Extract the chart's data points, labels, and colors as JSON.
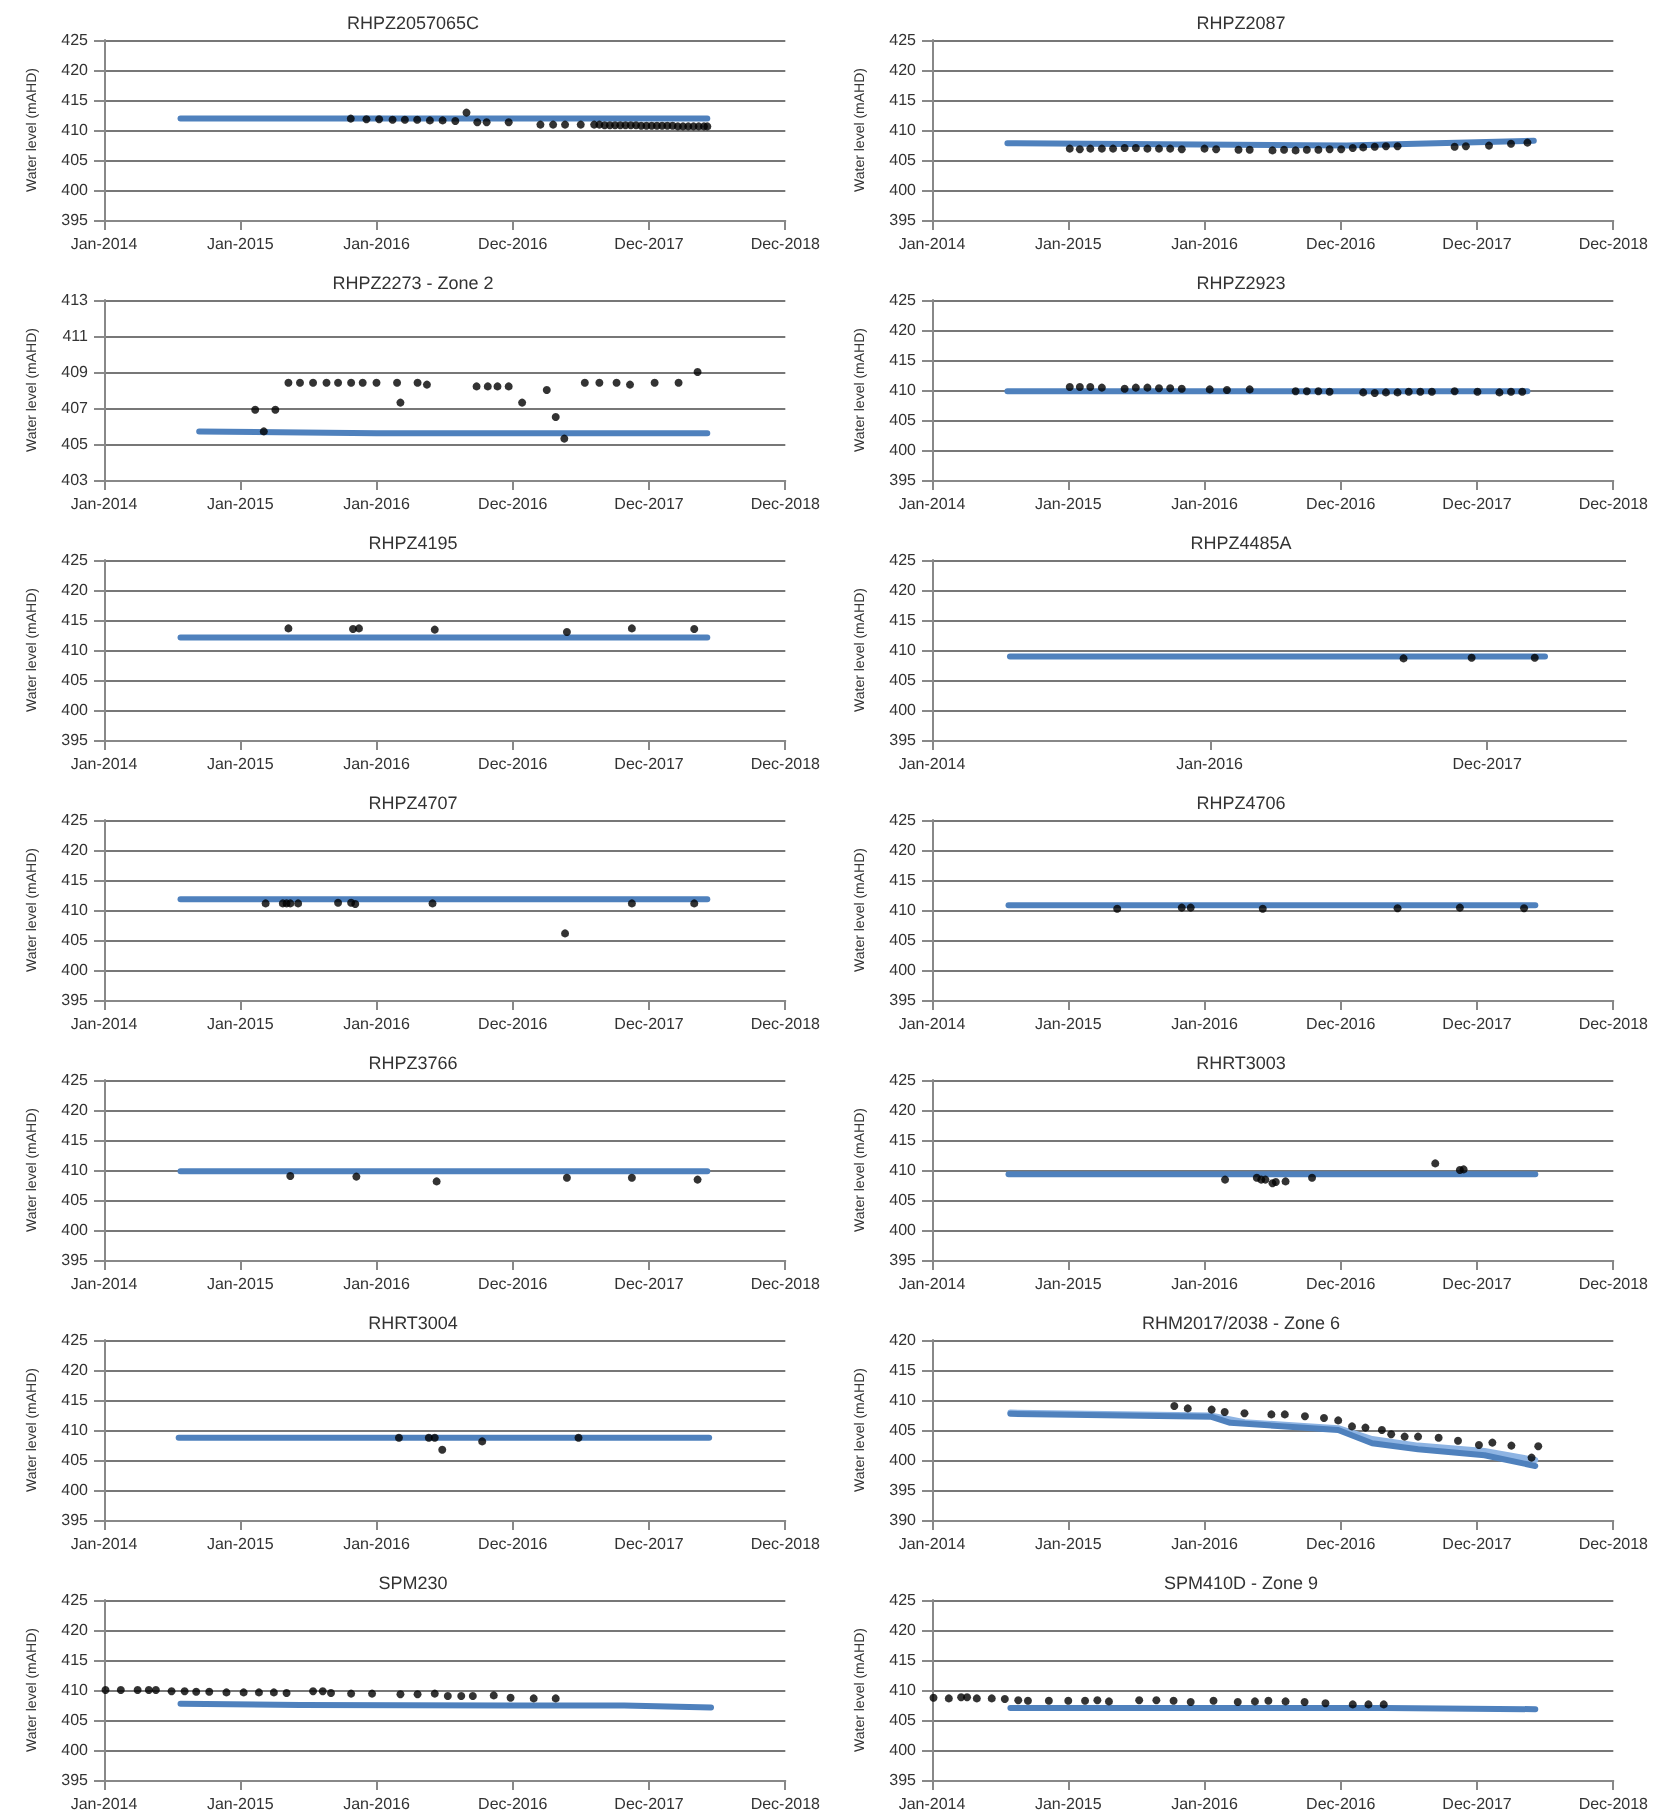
{
  "chart_data": [
    {
      "type": "scatter",
      "title": "RHPZ2057065C",
      "ylabel": "Water level (mAHD)",
      "grid": "y",
      "xlim": [
        "2014-01-01",
        "2018-12-31"
      ],
      "xticks": [
        {
          "value": "2014-01-01",
          "label": "Jan-2014"
        },
        {
          "value": "2015-01-01",
          "label": "Jan-2015"
        },
        {
          "value": "2016-01-01",
          "label": "Jan-2016"
        },
        {
          "value": "2016-12-31",
          "label": "Dec-2016"
        },
        {
          "value": "2017-12-31",
          "label": "Dec-2017"
        },
        {
          "value": "2018-12-31",
          "label": "Dec-2018"
        }
      ],
      "ylim": [
        395,
        425
      ],
      "yticks": [
        395,
        400,
        405,
        410,
        415,
        420,
        425
      ],
      "series": [
        {
          "type": "line",
          "color": "#4f81bd",
          "marker": "none",
          "x": [
            "2014-07-25",
            "2018-06-05"
          ],
          "values": [
            411.9,
            411.9
          ]
        },
        {
          "color": "#000000",
          "marker": "circle",
          "x": [
            "2015-10-24",
            "2015-12-05",
            "2016-01-08",
            "2016-02-13",
            "2016-03-17",
            "2016-04-19",
            "2016-05-23",
            "2016-06-26",
            "2016-07-30",
            "2016-08-29",
            "2016-09-27",
            "2016-10-22",
            "2016-12-20",
            "2017-03-15",
            "2017-04-18",
            "2017-05-20",
            "2017-07-01",
            "2017-08-06",
            "2017-08-20",
            "2017-09-03",
            "2017-09-17",
            "2017-10-01",
            "2017-10-15",
            "2017-10-29",
            "2017-11-12",
            "2017-11-26",
            "2017-12-10",
            "2017-12-24",
            "2018-01-07",
            "2018-01-21",
            "2018-02-04",
            "2018-02-18",
            "2018-03-04",
            "2018-03-18",
            "2018-04-01",
            "2018-04-15",
            "2018-04-29",
            "2018-05-13",
            "2018-05-27",
            "2018-06-05"
          ],
          "values": [
            411.9,
            411.8,
            411.8,
            411.7,
            411.7,
            411.7,
            411.6,
            411.6,
            411.5,
            412.9,
            411.3,
            411.3,
            411.3,
            410.9,
            410.9,
            410.9,
            410.9,
            410.9,
            410.9,
            410.8,
            410.8,
            410.8,
            410.8,
            410.8,
            410.8,
            410.8,
            410.7,
            410.7,
            410.7,
            410.7,
            410.7,
            410.7,
            410.7,
            410.6,
            410.6,
            410.6,
            410.6,
            410.6,
            410.6,
            410.6
          ]
        }
      ]
    },
    {
      "type": "scatter",
      "title": "RHPZ2087",
      "ylabel": "Water level (mAHD)",
      "grid": "y",
      "xlim": [
        "2014-01-01",
        "2018-12-31"
      ],
      "xticks": [
        {
          "value": "2014-01-01",
          "label": "Jan-2014"
        },
        {
          "value": "2015-01-01",
          "label": "Jan-2015"
        },
        {
          "value": "2016-01-01",
          "label": "Jan-2016"
        },
        {
          "value": "2016-12-31",
          "label": "Dec-2016"
        },
        {
          "value": "2017-12-31",
          "label": "Dec-2017"
        },
        {
          "value": "2018-12-31",
          "label": "Dec-2018"
        }
      ],
      "ylim": [
        395,
        425
      ],
      "yticks": [
        395,
        400,
        405,
        410,
        415,
        420,
        425
      ],
      "series": [
        {
          "type": "line",
          "color": "#4f81bd",
          "marker": "none",
          "x": [
            "2014-07-22",
            "2017-01-15",
            "2018-06-01"
          ],
          "values": [
            407.8,
            407.4,
            408.2
          ]
        },
        {
          "color": "#000000",
          "marker": "circle",
          "x": [
            "2015-01-05",
            "2015-02-01",
            "2015-03-01",
            "2015-04-01",
            "2015-05-01",
            "2015-06-01",
            "2015-07-01",
            "2015-08-01",
            "2015-09-01",
            "2015-10-01",
            "2015-11-01",
            "2016-01-01",
            "2016-02-01",
            "2016-04-01",
            "2016-05-01",
            "2016-07-01",
            "2016-08-01",
            "2016-09-01",
            "2016-10-01",
            "2016-11-01",
            "2016-12-01",
            "2017-01-01",
            "2017-02-01",
            "2017-03-01",
            "2017-04-01",
            "2017-05-01",
            "2017-06-01",
            "2017-11-01",
            "2017-12-01",
            "2018-02-01",
            "2018-04-01",
            "2018-05-15"
          ],
          "values": [
            406.9,
            406.8,
            406.9,
            406.9,
            406.9,
            407.0,
            407.0,
            406.9,
            406.9,
            406.9,
            406.8,
            406.9,
            406.8,
            406.7,
            406.7,
            406.6,
            406.7,
            406.6,
            406.7,
            406.7,
            406.8,
            406.8,
            407.0,
            407.1,
            407.2,
            407.3,
            407.3,
            407.2,
            407.3,
            407.4,
            407.7,
            407.9
          ]
        }
      ]
    },
    {
      "type": "scatter",
      "title": "RHPZ2273 - Zone 2",
      "ylabel": "Water level (mAHD)",
      "grid": "y",
      "xlim": [
        "2014-01-01",
        "2018-12-31"
      ],
      "xticks": [
        {
          "value": "2014-01-01",
          "label": "Jan-2014"
        },
        {
          "value": "2015-01-01",
          "label": "Jan-2015"
        },
        {
          "value": "2016-01-01",
          "label": "Jan-2016"
        },
        {
          "value": "2016-12-31",
          "label": "Dec-2016"
        },
        {
          "value": "2017-12-31",
          "label": "Dec-2017"
        },
        {
          "value": "2018-12-31",
          "label": "Dec-2018"
        }
      ],
      "ylim": [
        403,
        413
      ],
      "yticks": [
        403,
        405,
        407,
        409,
        411,
        413
      ],
      "series": [
        {
          "type": "line",
          "color": "#4f81bd",
          "marker": "none",
          "x": [
            "2014-09-13",
            "2016-01-01",
            "2018-06-05"
          ],
          "values": [
            405.7,
            405.6,
            405.6
          ]
        },
        {
          "color": "#000000",
          "marker": "circle",
          "x": [
            "2015-02-10",
            "2015-03-05",
            "2015-04-05",
            "2015-05-10",
            "2015-06-10",
            "2015-07-15",
            "2015-08-20",
            "2015-09-20",
            "2015-10-25",
            "2015-11-25",
            "2016-01-01",
            "2016-02-25",
            "2016-03-05",
            "2016-04-20",
            "2016-05-15",
            "2016-09-25",
            "2016-10-25",
            "2016-11-20",
            "2016-12-20",
            "2017-01-25",
            "2017-04-01",
            "2017-04-25",
            "2017-05-18",
            "2017-07-12",
            "2017-08-20",
            "2017-10-05",
            "2017-11-10",
            "2018-01-15",
            "2018-03-20",
            "2018-05-10"
          ],
          "values": [
            406.9,
            405.7,
            406.9,
            408.4,
            408.4,
            408.4,
            408.4,
            408.4,
            408.4,
            408.4,
            408.4,
            408.4,
            407.3,
            408.4,
            408.3,
            408.2,
            408.2,
            408.2,
            408.2,
            407.3,
            408.0,
            406.5,
            405.3,
            408.4,
            408.4,
            408.4,
            408.3,
            408.4,
            408.4,
            409.0
          ]
        }
      ]
    },
    {
      "type": "scatter",
      "title": "RHPZ2923",
      "ylabel": "Water level (mAHD)",
      "grid": "y",
      "xlim": [
        "2014-01-01",
        "2018-12-31"
      ],
      "xticks": [
        {
          "value": "2014-01-01",
          "label": "Jan-2014"
        },
        {
          "value": "2015-01-01",
          "label": "Jan-2015"
        },
        {
          "value": "2016-01-01",
          "label": "Jan-2016"
        },
        {
          "value": "2016-12-31",
          "label": "Dec-2016"
        },
        {
          "value": "2017-12-31",
          "label": "Dec-2017"
        },
        {
          "value": "2018-12-31",
          "label": "Dec-2018"
        }
      ],
      "ylim": [
        395,
        425
      ],
      "yticks": [
        395,
        400,
        405,
        410,
        415,
        420,
        425
      ],
      "series": [
        {
          "type": "line",
          "color": "#4f81bd",
          "marker": "none",
          "x": [
            "2014-07-22",
            "2018-05-15"
          ],
          "values": [
            409.8,
            409.8
          ]
        },
        {
          "color": "#000000",
          "marker": "circle",
          "x": [
            "2015-01-05",
            "2015-02-01",
            "2015-03-01",
            "2015-04-01",
            "2015-06-01",
            "2015-07-01",
            "2015-08-01",
            "2015-09-01",
            "2015-10-01",
            "2015-11-01",
            "2016-01-15",
            "2016-03-01",
            "2016-05-01",
            "2016-09-01",
            "2016-10-01",
            "2016-11-01",
            "2016-12-01",
            "2017-03-01",
            "2017-04-01",
            "2017-05-01",
            "2017-06-01",
            "2017-07-01",
            "2017-08-01",
            "2017-09-01",
            "2017-11-01",
            "2018-01-01",
            "2018-03-01",
            "2018-04-01",
            "2018-05-01"
          ],
          "values": [
            410.5,
            410.5,
            410.5,
            410.4,
            410.2,
            410.4,
            410.4,
            410.3,
            410.3,
            410.2,
            410.1,
            410.0,
            410.1,
            409.8,
            409.8,
            409.8,
            409.7,
            409.6,
            409.5,
            409.6,
            409.6,
            409.7,
            409.7,
            409.7,
            409.8,
            409.7,
            409.6,
            409.7,
            409.7
          ]
        }
      ]
    },
    {
      "type": "scatter",
      "title": "RHPZ4195",
      "ylabel": "Water level (mAHD)",
      "grid": "y",
      "xlim": [
        "2014-01-01",
        "2018-12-31"
      ],
      "xticks": [
        {
          "value": "2014-01-01",
          "label": "Jan-2014"
        },
        {
          "value": "2015-01-01",
          "label": "Jan-2015"
        },
        {
          "value": "2016-01-01",
          "label": "Jan-2016"
        },
        {
          "value": "2016-12-31",
          "label": "Dec-2016"
        },
        {
          "value": "2017-12-31",
          "label": "Dec-2017"
        },
        {
          "value": "2018-12-31",
          "label": "Dec-2018"
        }
      ],
      "ylim": [
        395,
        425
      ],
      "yticks": [
        395,
        400,
        405,
        410,
        415,
        420,
        425
      ],
      "series": [
        {
          "type": "line",
          "color": "#4f81bd",
          "marker": "none",
          "x": [
            "2014-07-25",
            "2018-06-05"
          ],
          "values": [
            412.1,
            412.1
          ]
        },
        {
          "color": "#000000",
          "marker": "circle",
          "x": [
            "2015-05-10",
            "2015-10-30",
            "2015-11-15",
            "2016-06-05",
            "2017-05-25",
            "2017-11-15",
            "2018-05-01"
          ],
          "values": [
            413.6,
            413.5,
            413.6,
            413.4,
            413.0,
            413.6,
            413.5
          ]
        }
      ]
    },
    {
      "type": "scatter",
      "title": "RHPZ4485A",
      "ylabel": "Water level (mAHD)",
      "grid": "y",
      "xlim": [
        "2014-01-01",
        "2018-12-31"
      ],
      "xticks": [
        {
          "value": "2014-01-01",
          "label": "Jan-2014"
        },
        {
          "value": "2016-01-01",
          "label": "Jan-2016"
        },
        {
          "value": "2017-12-31",
          "label": "Dec-2017"
        }
      ],
      "ylim": [
        395,
        425
      ],
      "yticks": [
        395,
        400,
        405,
        410,
        415,
        420,
        425
      ],
      "series": [
        {
          "type": "line",
          "color": "#4f81bd",
          "marker": "none",
          "x": [
            "2014-07-25",
            "2018-06-01"
          ],
          "values": [
            408.9,
            408.9
          ]
        },
        {
          "color": "#000000",
          "marker": "circle",
          "x": [
            "2017-05-25",
            "2017-11-20",
            "2018-05-05"
          ],
          "values": [
            408.6,
            408.7,
            408.7
          ]
        }
      ]
    },
    {
      "type": "scatter",
      "title": "RHPZ4707",
      "ylabel": "Water level (mAHD)",
      "grid": "y",
      "xlim": [
        "2014-01-01",
        "2018-12-31"
      ],
      "xticks": [
        {
          "value": "2014-01-01",
          "label": "Jan-2014"
        },
        {
          "value": "2015-01-01",
          "label": "Jan-2015"
        },
        {
          "value": "2016-01-01",
          "label": "Jan-2016"
        },
        {
          "value": "2016-12-31",
          "label": "Dec-2016"
        },
        {
          "value": "2017-12-31",
          "label": "Dec-2017"
        },
        {
          "value": "2018-12-31",
          "label": "Dec-2018"
        }
      ],
      "ylim": [
        395,
        425
      ],
      "yticks": [
        395,
        400,
        405,
        410,
        415,
        420,
        425
      ],
      "series": [
        {
          "type": "line",
          "color": "#4f81bd",
          "marker": "none",
          "x": [
            "2014-07-25",
            "2018-06-05"
          ],
          "values": [
            411.8,
            411.8
          ]
        },
        {
          "color": "#000000",
          "marker": "circle",
          "x": [
            "2015-03-10",
            "2015-04-25",
            "2015-05-05",
            "2015-05-15",
            "2015-06-05",
            "2015-09-20",
            "2015-10-25",
            "2015-11-05",
            "2016-05-30",
            "2017-05-20",
            "2017-11-15",
            "2018-05-01"
          ],
          "values": [
            411.1,
            411.1,
            411.1,
            411.1,
            411.1,
            411.2,
            411.2,
            411.0,
            411.1,
            406.1,
            411.1,
            411.1
          ]
        }
      ]
    },
    {
      "type": "scatter",
      "title": "RHPZ4706",
      "ylabel": "Water level (mAHD)",
      "grid": "y",
      "xlim": [
        "2014-01-01",
        "2018-12-31"
      ],
      "xticks": [
        {
          "value": "2014-01-01",
          "label": "Jan-2014"
        },
        {
          "value": "2015-01-01",
          "label": "Jan-2015"
        },
        {
          "value": "2016-01-01",
          "label": "Jan-2016"
        },
        {
          "value": "2016-12-31",
          "label": "Dec-2016"
        },
        {
          "value": "2017-12-31",
          "label": "Dec-2017"
        },
        {
          "value": "2018-12-31",
          "label": "Dec-2018"
        }
      ],
      "ylim": [
        395,
        425
      ],
      "yticks": [
        395,
        400,
        405,
        410,
        415,
        420,
        425
      ],
      "series": [
        {
          "type": "line",
          "color": "#4f81bd",
          "marker": "none",
          "x": [
            "2014-07-25",
            "2018-06-05"
          ],
          "values": [
            410.8,
            410.8
          ]
        },
        {
          "color": "#000000",
          "marker": "circle",
          "x": [
            "2015-05-12",
            "2015-11-01",
            "2015-11-25",
            "2016-06-05",
            "2017-06-01",
            "2017-11-15",
            "2018-05-06"
          ],
          "values": [
            410.2,
            410.4,
            410.4,
            410.2,
            410.3,
            410.4,
            410.3
          ]
        }
      ]
    },
    {
      "type": "scatter",
      "title": "RHPZ3766",
      "ylabel": "Water level (mAHD)",
      "grid": "y",
      "xlim": [
        "2014-01-01",
        "2018-12-31"
      ],
      "xticks": [
        {
          "value": "2014-01-01",
          "label": "Jan-2014"
        },
        {
          "value": "2015-01-01",
          "label": "Jan-2015"
        },
        {
          "value": "2016-01-01",
          "label": "Jan-2016"
        },
        {
          "value": "2016-12-31",
          "label": "Dec-2016"
        },
        {
          "value": "2017-12-31",
          "label": "Dec-2017"
        },
        {
          "value": "2018-12-31",
          "label": "Dec-2018"
        }
      ],
      "ylim": [
        395,
        425
      ],
      "yticks": [
        395,
        400,
        405,
        410,
        415,
        420,
        425
      ],
      "series": [
        {
          "type": "line",
          "color": "#4f81bd",
          "marker": "none",
          "x": [
            "2014-07-25",
            "2018-06-05"
          ],
          "values": [
            409.8,
            409.8
          ]
        },
        {
          "color": "#000000",
          "marker": "circle",
          "x": [
            "2015-05-15",
            "2015-11-08",
            "2016-06-10",
            "2017-05-25",
            "2017-11-15",
            "2018-05-10"
          ],
          "values": [
            409.0,
            408.9,
            408.1,
            408.7,
            408.7,
            408.4
          ]
        }
      ]
    },
    {
      "type": "scatter",
      "title": "RHRT3003",
      "ylabel": "Water level (mAHD)",
      "grid": "y",
      "xlim": [
        "2014-01-01",
        "2018-12-31"
      ],
      "xticks": [
        {
          "value": "2014-01-01",
          "label": "Jan-2014"
        },
        {
          "value": "2015-01-01",
          "label": "Jan-2015"
        },
        {
          "value": "2016-01-01",
          "label": "Jan-2016"
        },
        {
          "value": "2016-12-31",
          "label": "Dec-2016"
        },
        {
          "value": "2017-12-31",
          "label": "Dec-2017"
        },
        {
          "value": "2018-12-31",
          "label": "Dec-2018"
        }
      ],
      "ylim": [
        395,
        425
      ],
      "yticks": [
        395,
        400,
        405,
        410,
        415,
        420,
        425
      ],
      "series": [
        {
          "type": "line",
          "color": "#4f81bd",
          "marker": "none",
          "x": [
            "2014-07-25",
            "2018-06-05"
          ],
          "values": [
            409.3,
            409.3
          ]
        },
        {
          "color": "#000000",
          "marker": "circle",
          "x": [
            "2016-02-25",
            "2016-05-20",
            "2016-06-01",
            "2016-06-12",
            "2016-07-01",
            "2016-07-10",
            "2016-08-05",
            "2016-10-15",
            "2017-09-10",
            "2017-11-15",
            "2017-11-25"
          ],
          "values": [
            408.4,
            408.7,
            408.4,
            408.4,
            407.8,
            408.0,
            408.1,
            408.7,
            411.1,
            410.0,
            410.1
          ]
        }
      ]
    },
    {
      "type": "scatter",
      "title": "RHRT3004",
      "ylabel": "Water level (mAHD)",
      "grid": "y",
      "xlim": [
        "2014-01-01",
        "2018-12-31"
      ],
      "xticks": [
        {
          "value": "2014-01-01",
          "label": "Jan-2014"
        },
        {
          "value": "2015-01-01",
          "label": "Jan-2015"
        },
        {
          "value": "2016-01-01",
          "label": "Jan-2016"
        },
        {
          "value": "2016-12-31",
          "label": "Dec-2016"
        },
        {
          "value": "2017-12-31",
          "label": "Dec-2017"
        },
        {
          "value": "2018-12-31",
          "label": "Dec-2018"
        }
      ],
      "ylim": [
        395,
        425
      ],
      "yticks": [
        395,
        400,
        405,
        410,
        415,
        420,
        425
      ],
      "series": [
        {
          "type": "line",
          "color": "#4f81bd",
          "marker": "none",
          "x": [
            "2014-07-20",
            "2018-06-10"
          ],
          "values": [
            408.7,
            408.7
          ]
        },
        {
          "color": "#000000",
          "marker": "circle",
          "x": [
            "2016-03-01",
            "2016-05-20",
            "2016-06-05",
            "2016-06-25",
            "2016-10-10",
            "2017-06-25"
          ],
          "values": [
            408.7,
            408.7,
            408.7,
            406.7,
            408.1,
            408.7
          ]
        }
      ]
    },
    {
      "type": "scatter",
      "title": "RHM2017/2038 - Zone 6",
      "ylabel": "Water level (mAHD)",
      "grid": "y",
      "xlim": [
        "2014-01-01",
        "2018-12-31"
      ],
      "xticks": [
        {
          "value": "2014-01-01",
          "label": "Jan-2014"
        },
        {
          "value": "2015-01-01",
          "label": "Jan-2015"
        },
        {
          "value": "2016-01-01",
          "label": "Jan-2016"
        },
        {
          "value": "2016-12-31",
          "label": "Dec-2016"
        },
        {
          "value": "2017-12-31",
          "label": "Dec-2017"
        },
        {
          "value": "2018-12-31",
          "label": "Dec-2018"
        }
      ],
      "ylim": [
        390,
        420
      ],
      "yticks": [
        390,
        395,
        400,
        405,
        410,
        415,
        420
      ],
      "series": [
        {
          "type": "line",
          "color": "#8eb4e3",
          "marker": "none",
          "x": [
            "2014-07-30",
            "2016-01-20",
            "2016-04-17",
            "2016-12-24",
            "2017-03-25",
            "2017-07-26",
            "2018-01-20",
            "2018-06-05"
          ],
          "values": [
            407.9,
            407.4,
            406.3,
            405.3,
            403.5,
            402.4,
            401.5,
            400.0
          ]
        },
        {
          "type": "line",
          "color": "#4f81bd",
          "marker": "none",
          "x": [
            "2014-07-30",
            "2016-01-20",
            "2016-03-10",
            "2016-12-24",
            "2017-03-25",
            "2017-07-26",
            "2018-01-20",
            "2018-06-05"
          ],
          "values": [
            407.7,
            407.2,
            406.2,
            405.0,
            402.8,
            401.8,
            400.8,
            399.0
          ]
        },
        {
          "color": "#000000",
          "marker": "circle",
          "x": [
            "2015-10-12",
            "2015-11-17",
            "2016-01-20",
            "2016-02-24",
            "2016-04-17",
            "2016-06-28",
            "2016-08-03",
            "2016-09-26",
            "2016-11-16",
            "2016-12-24",
            "2017-01-30",
            "2017-03-07",
            "2017-04-20",
            "2017-05-15",
            "2017-06-20",
            "2017-07-26",
            "2017-09-19",
            "2017-11-10",
            "2018-01-05",
            "2018-02-10",
            "2018-04-02",
            "2018-05-26",
            "2018-06-13"
          ],
          "values": [
            409.0,
            408.6,
            408.4,
            408.0,
            407.8,
            407.6,
            407.6,
            407.3,
            407.0,
            406.6,
            405.6,
            405.4,
            405.0,
            404.3,
            403.9,
            403.9,
            403.7,
            403.2,
            402.5,
            402.9,
            402.4,
            400.4,
            402.3
          ]
        }
      ]
    },
    {
      "type": "scatter",
      "title": "SPM230",
      "ylabel": "Water level (mAHD)",
      "grid": "y",
      "xlim": [
        "2014-01-01",
        "2018-12-31"
      ],
      "xticks": [
        {
          "value": "2014-01-01",
          "label": "Jan-2014"
        },
        {
          "value": "2015-01-01",
          "label": "Jan-2015"
        },
        {
          "value": "2016-01-01",
          "label": "Jan-2016"
        },
        {
          "value": "2016-12-31",
          "label": "Dec-2016"
        },
        {
          "value": "2017-12-31",
          "label": "Dec-2017"
        },
        {
          "value": "2018-12-31",
          "label": "Dec-2018"
        }
      ],
      "ylim": [
        395,
        425
      ],
      "yticks": [
        395,
        400,
        405,
        410,
        415,
        420,
        425
      ],
      "series": [
        {
          "type": "line",
          "color": "#4f81bd",
          "marker": "none",
          "x": [
            "2014-07-25",
            "2015-06-10",
            "2017-10-25",
            "2018-06-15"
          ],
          "values": [
            407.7,
            407.5,
            407.4,
            407.1
          ]
        },
        {
          "color": "#000000",
          "marker": "circle",
          "x": [
            "2014-01-05",
            "2014-02-15",
            "2014-04-01",
            "2014-05-01",
            "2014-05-20",
            "2014-07-01",
            "2014-08-05",
            "2014-09-05",
            "2014-10-10",
            "2014-11-25",
            "2015-01-10",
            "2015-02-20",
            "2015-04-01",
            "2015-05-05",
            "2015-07-15",
            "2015-08-10",
            "2015-09-01",
            "2015-10-25",
            "2015-12-20",
            "2016-03-05",
            "2016-04-20",
            "2016-06-05",
            "2016-07-10",
            "2016-08-15",
            "2016-09-15",
            "2016-11-10",
            "2016-12-25",
            "2017-02-25",
            "2017-04-25"
          ],
          "values": [
            410.0,
            410.0,
            410.0,
            410.0,
            410.0,
            409.8,
            409.8,
            409.7,
            409.7,
            409.6,
            409.6,
            409.6,
            409.6,
            409.5,
            409.8,
            409.8,
            409.5,
            409.4,
            409.4,
            409.3,
            409.3,
            409.4,
            409.0,
            409.0,
            409.0,
            409.1,
            408.7,
            408.6,
            408.6
          ]
        }
      ]
    },
    {
      "type": "scatter",
      "title": "SPM410D - Zone 9",
      "ylabel": "Water level (mAHD)",
      "grid": "y",
      "xlim": [
        "2014-01-01",
        "2018-12-31"
      ],
      "xticks": [
        {
          "value": "2014-01-01",
          "label": "Jan-2014"
        },
        {
          "value": "2015-01-01",
          "label": "Jan-2015"
        },
        {
          "value": "2016-01-01",
          "label": "Jan-2016"
        },
        {
          "value": "2016-12-31",
          "label": "Dec-2016"
        },
        {
          "value": "2017-12-31",
          "label": "Dec-2017"
        },
        {
          "value": "2018-12-31",
          "label": "Dec-2018"
        }
      ],
      "ylim": [
        395,
        425
      ],
      "yticks": [
        395,
        400,
        405,
        410,
        415,
        420,
        425
      ],
      "series": [
        {
          "type": "line",
          "color": "#4f81bd",
          "marker": "none",
          "x": [
            "2014-07-30",
            "2017-05-01",
            "2018-06-05"
          ],
          "values": [
            407.0,
            407.0,
            406.8
          ]
        },
        {
          "color": "#000000",
          "marker": "circle",
          "x": [
            "2014-01-05",
            "2014-02-15",
            "2014-03-20",
            "2014-04-05",
            "2014-05-01",
            "2014-06-10",
            "2014-07-15",
            "2014-08-20",
            "2014-09-15",
            "2014-11-10",
            "2015-01-01",
            "2015-02-15",
            "2015-03-20",
            "2015-04-20",
            "2015-07-10",
            "2015-08-25",
            "2015-10-10",
            "2015-11-25",
            "2016-01-25",
            "2016-03-30",
            "2016-05-15",
            "2016-06-20",
            "2016-08-05",
            "2016-09-25",
            "2016-11-20",
            "2017-02-01",
            "2017-03-15",
            "2017-04-25"
          ],
          "values": [
            408.7,
            408.6,
            408.8,
            408.8,
            408.6,
            408.6,
            408.5,
            408.3,
            408.2,
            408.2,
            408.2,
            408.2,
            408.3,
            408.1,
            408.3,
            408.3,
            408.2,
            408.0,
            408.2,
            408.0,
            408.1,
            408.2,
            408.1,
            408.0,
            407.8,
            407.6,
            407.6,
            407.6
          ]
        }
      ]
    }
  ]
}
